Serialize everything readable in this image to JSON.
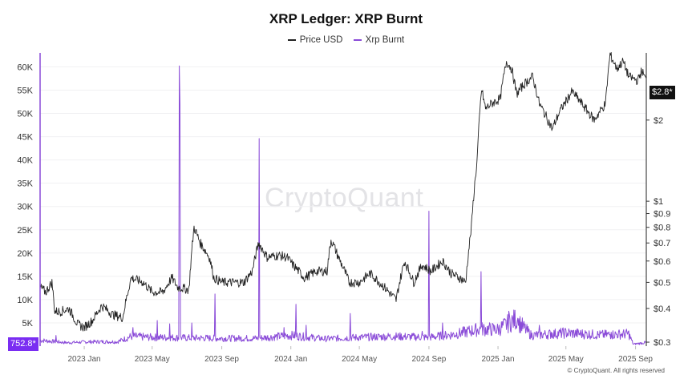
{
  "chart_data": {
    "type": "line",
    "title": "XRP Ledger: XRP Burnt",
    "legend": [
      "Price USD",
      "Xrp Burnt"
    ],
    "colors": {
      "price": "#222222",
      "burnt": "#8a4bd8",
      "left_flag": "#7a2df2",
      "right_flag": "#111111"
    },
    "x_ticks": [
      "2023 Jan",
      "2023 May",
      "2023 Sep",
      "2024 Jan",
      "2024 May",
      "2024 Sep",
      "2025 Jan",
      "2025 May",
      "2025 Sep"
    ],
    "x_range": [
      "2022-10-15",
      "2025-09-20"
    ],
    "y_left": {
      "ticks": [
        "60K",
        "55K",
        "50K",
        "45K",
        "40K",
        "35K",
        "30K",
        "25K",
        "20K",
        "15K",
        "10K",
        "5K"
      ],
      "tick_values": [
        60000,
        55000,
        50000,
        45000,
        40000,
        35000,
        30000,
        25000,
        20000,
        15000,
        10000,
        5000
      ],
      "range": [
        0,
        63000
      ]
    },
    "y_right": {
      "scale": "log",
      "ticks": [
        "$2",
        "$1",
        "$0.9",
        "$0.8",
        "$0.7",
        "$0.6",
        "$0.5",
        "$0.4",
        "$0.3"
      ],
      "tick_values": [
        2,
        1,
        0.9,
        0.8,
        0.7,
        0.6,
        0.5,
        0.4,
        0.3
      ],
      "range": [
        0.29,
        3.55
      ]
    },
    "series": [
      {
        "name": "Price USD",
        "axis": "right",
        "points": [
          [
            "2022-10-15",
            0.48
          ],
          [
            "2022-10-25",
            0.46
          ],
          [
            "2022-11-05",
            0.5
          ],
          [
            "2022-11-10",
            0.39
          ],
          [
            "2022-11-20",
            0.39
          ],
          [
            "2022-12-05",
            0.4
          ],
          [
            "2022-12-20",
            0.35
          ],
          [
            "2023-01-01",
            0.34
          ],
          [
            "2023-01-15",
            0.36
          ],
          [
            "2023-02-01",
            0.41
          ],
          [
            "2023-02-20",
            0.38
          ],
          [
            "2023-03-10",
            0.37
          ],
          [
            "2023-03-25",
            0.52
          ],
          [
            "2023-04-15",
            0.5
          ],
          [
            "2023-05-01",
            0.46
          ],
          [
            "2023-05-20",
            0.46
          ],
          [
            "2023-06-05",
            0.52
          ],
          [
            "2023-06-15",
            0.48
          ],
          [
            "2023-07-05",
            0.47
          ],
          [
            "2023-07-14",
            0.8
          ],
          [
            "2023-07-25",
            0.7
          ],
          [
            "2023-08-10",
            0.62
          ],
          [
            "2023-08-18",
            0.52
          ],
          [
            "2023-09-01",
            0.5
          ],
          [
            "2023-09-20",
            0.5
          ],
          [
            "2023-10-10",
            0.5
          ],
          [
            "2023-10-25",
            0.55
          ],
          [
            "2023-11-05",
            0.7
          ],
          [
            "2023-11-20",
            0.62
          ],
          [
            "2023-12-10",
            0.63
          ],
          [
            "2023-12-25",
            0.62
          ],
          [
            "2024-01-05",
            0.58
          ],
          [
            "2024-01-25",
            0.52
          ],
          [
            "2024-02-15",
            0.55
          ],
          [
            "2024-03-05",
            0.55
          ],
          [
            "2024-03-12",
            0.72
          ],
          [
            "2024-03-25",
            0.62
          ],
          [
            "2024-04-13",
            0.5
          ],
          [
            "2024-05-01",
            0.5
          ],
          [
            "2024-05-20",
            0.54
          ],
          [
            "2024-06-10",
            0.49
          ],
          [
            "2024-07-05",
            0.43
          ],
          [
            "2024-07-20",
            0.6
          ],
          [
            "2024-08-05",
            0.5
          ],
          [
            "2024-08-20",
            0.58
          ],
          [
            "2024-09-05",
            0.55
          ],
          [
            "2024-09-25",
            0.6
          ],
          [
            "2024-10-10",
            0.54
          ],
          [
            "2024-10-25",
            0.52
          ],
          [
            "2024-11-05",
            0.5
          ],
          [
            "2024-11-15",
            0.8
          ],
          [
            "2024-11-20",
            1.1
          ],
          [
            "2024-11-25",
            1.4
          ],
          [
            "2024-12-03",
            2.6
          ],
          [
            "2024-12-10",
            2.2
          ],
          [
            "2024-12-20",
            2.3
          ],
          [
            "2025-01-05",
            2.4
          ],
          [
            "2025-01-16",
            3.3
          ],
          [
            "2025-01-25",
            3.1
          ],
          [
            "2025-02-03",
            2.5
          ],
          [
            "2025-02-15",
            2.7
          ],
          [
            "2025-03-03",
            2.9
          ],
          [
            "2025-03-15",
            2.3
          ],
          [
            "2025-04-07",
            1.85
          ],
          [
            "2025-04-20",
            2.15
          ],
          [
            "2025-05-12",
            2.55
          ],
          [
            "2025-06-05",
            2.2
          ],
          [
            "2025-06-20",
            2.0
          ],
          [
            "2025-07-10",
            2.3
          ],
          [
            "2025-07-18",
            3.5
          ],
          [
            "2025-07-30",
            3.1
          ],
          [
            "2025-08-10",
            3.3
          ],
          [
            "2025-08-20",
            2.9
          ],
          [
            "2025-09-05",
            2.8
          ],
          [
            "2025-09-12",
            3.05
          ],
          [
            "2025-09-20",
            2.8
          ]
        ]
      },
      {
        "name": "Xrp Burnt",
        "axis": "left",
        "baseline_points": [
          [
            "2022-10-15",
            1200
          ],
          [
            "2022-12-01",
            700
          ],
          [
            "2023-01-15",
            900
          ],
          [
            "2023-03-01",
            900
          ],
          [
            "2023-03-25",
            2000
          ],
          [
            "2023-05-01",
            1800
          ],
          [
            "2023-07-01",
            1700
          ],
          [
            "2023-09-01",
            1600
          ],
          [
            "2023-11-01",
            1600
          ],
          [
            "2024-01-01",
            2200
          ],
          [
            "2024-03-01",
            1500
          ],
          [
            "2024-05-01",
            1800
          ],
          [
            "2024-07-01",
            2000
          ],
          [
            "2024-09-01",
            1800
          ],
          [
            "2024-10-15",
            2400
          ],
          [
            "2024-12-01",
            3500
          ],
          [
            "2025-01-01",
            3400
          ],
          [
            "2025-02-01",
            5500
          ],
          [
            "2025-03-01",
            2200
          ],
          [
            "2025-05-01",
            2700
          ],
          [
            "2025-07-01",
            2300
          ],
          [
            "2025-08-20",
            2500
          ],
          [
            "2025-08-28",
            400
          ],
          [
            "2025-09-20",
            752.8
          ]
        ],
        "spikes": [
          [
            "2022-11-12",
            2300
          ],
          [
            "2023-03-28",
            4000
          ],
          [
            "2023-05-10",
            5500
          ],
          [
            "2023-06-01",
            4800
          ],
          [
            "2023-06-18",
            60200
          ],
          [
            "2023-06-19",
            52000
          ],
          [
            "2023-07-10",
            5000
          ],
          [
            "2023-08-20",
            11200
          ],
          [
            "2023-11-06",
            44600
          ],
          [
            "2023-12-20",
            4000
          ],
          [
            "2024-01-10",
            9000
          ],
          [
            "2024-01-28",
            4500
          ],
          [
            "2024-04-15",
            7000
          ],
          [
            "2024-08-20",
            3200
          ],
          [
            "2024-09-01",
            29000
          ],
          [
            "2024-09-25",
            5000
          ],
          [
            "2024-12-02",
            16000
          ],
          [
            "2025-01-20",
            7500
          ],
          [
            "2025-02-05",
            6000
          ],
          [
            "2025-03-15",
            4500
          ],
          [
            "2025-04-05",
            3000
          ],
          [
            "2025-05-20",
            2500
          ],
          [
            "2025-07-20",
            3000
          ]
        ]
      }
    ],
    "last_values": {
      "left": "752.8*",
      "right": "$2.8*"
    },
    "watermark": "CryptoQuant",
    "source": "© CryptoQuant. All rights reserved"
  }
}
